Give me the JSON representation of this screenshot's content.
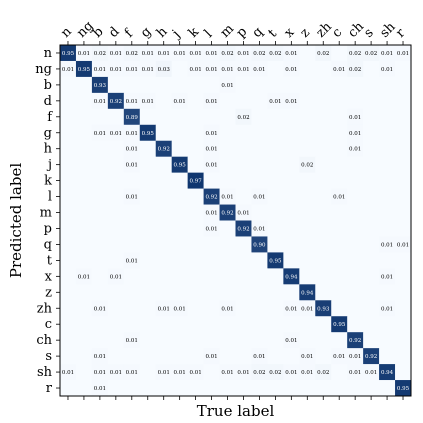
{
  "chart_data": {
    "type": "heatmap",
    "title": "",
    "xlabel": "True label",
    "ylabel": "Predicted label",
    "x_categories": [
      "n",
      "ng",
      "b",
      "d",
      "f",
      "g",
      "h",
      "j",
      "k",
      "l",
      "m",
      "p",
      "q",
      "t",
      "x",
      "z",
      "zh",
      "c",
      "ch",
      "s",
      "sh",
      "r"
    ],
    "y_categories": [
      "n",
      "ng",
      "b",
      "d",
      "f",
      "g",
      "h",
      "j",
      "k",
      "l",
      "m",
      "p",
      "q",
      "t",
      "x",
      "z",
      "zh",
      "c",
      "ch",
      "s",
      "sh",
      "r"
    ],
    "x_tick_position": "top",
    "x_tick_rotation_deg": -45,
    "colors": {
      "low": "#f7fbff",
      "high": "#08306b",
      "text_dark": "#000000",
      "text_light": "#ffffff",
      "border": "#000000"
    },
    "value_range": [
      0,
      1
    ],
    "values": [
      [
        0.95,
        0.01,
        0.02,
        0.01,
        0.02,
        0.01,
        0.01,
        0.01,
        0.01,
        0.01,
        0.02,
        0.01,
        0.02,
        0.02,
        0.01,
        null,
        0.02,
        null,
        0.02,
        0.02,
        0.01,
        0.01
      ],
      [
        0.01,
        0.95,
        0.01,
        0.01,
        0.01,
        0.01,
        0.03,
        null,
        0.01,
        0.01,
        0.01,
        0.01,
        0.01,
        null,
        0.01,
        null,
        null,
        0.01,
        0.02,
        null,
        0.01,
        null
      ],
      [
        null,
        null,
        0.93,
        null,
        null,
        null,
        null,
        null,
        null,
        null,
        0.01,
        null,
        null,
        null,
        null,
        null,
        null,
        null,
        null,
        null,
        null,
        null
      ],
      [
        null,
        null,
        0.01,
        0.92,
        0.01,
        0.01,
        null,
        0.01,
        null,
        0.01,
        null,
        null,
        null,
        0.01,
        0.01,
        null,
        null,
        null,
        null,
        null,
        null,
        null
      ],
      [
        null,
        null,
        null,
        null,
        0.89,
        null,
        null,
        null,
        null,
        null,
        null,
        0.02,
        null,
        null,
        null,
        null,
        null,
        null,
        0.01,
        null,
        null,
        null
      ],
      [
        null,
        null,
        0.01,
        0.01,
        0.01,
        0.95,
        null,
        null,
        null,
        0.01,
        null,
        null,
        null,
        null,
        null,
        null,
        null,
        null,
        0.01,
        null,
        null,
        null
      ],
      [
        null,
        null,
        null,
        null,
        0.01,
        null,
        0.92,
        null,
        null,
        0.01,
        null,
        null,
        null,
        null,
        null,
        null,
        null,
        null,
        0.01,
        null,
        null,
        null
      ],
      [
        null,
        null,
        null,
        null,
        0.01,
        null,
        null,
        0.95,
        null,
        0.01,
        null,
        null,
        null,
        null,
        null,
        0.02,
        null,
        null,
        null,
        null,
        null,
        null
      ],
      [
        null,
        null,
        null,
        null,
        null,
        null,
        null,
        null,
        0.97,
        null,
        null,
        null,
        null,
        null,
        null,
        null,
        null,
        null,
        null,
        null,
        null,
        null
      ],
      [
        null,
        null,
        null,
        null,
        0.01,
        null,
        null,
        null,
        null,
        0.92,
        0.01,
        null,
        0.01,
        null,
        null,
        null,
        null,
        0.01,
        null,
        null,
        null,
        null
      ],
      [
        null,
        null,
        null,
        null,
        null,
        null,
        null,
        null,
        null,
        0.01,
        0.92,
        0.01,
        null,
        null,
        null,
        null,
        null,
        null,
        null,
        null,
        null,
        null
      ],
      [
        null,
        null,
        null,
        null,
        null,
        null,
        null,
        null,
        null,
        0.01,
        null,
        0.92,
        0.01,
        null,
        null,
        null,
        null,
        null,
        null,
        null,
        null,
        null
      ],
      [
        null,
        null,
        null,
        null,
        null,
        null,
        null,
        null,
        null,
        null,
        null,
        null,
        0.9,
        null,
        null,
        null,
        null,
        null,
        null,
        null,
        0.01,
        0.01
      ],
      [
        null,
        null,
        null,
        null,
        0.01,
        null,
        null,
        null,
        null,
        null,
        null,
        null,
        null,
        0.95,
        null,
        null,
        null,
        null,
        null,
        null,
        null,
        null
      ],
      [
        null,
        0.01,
        null,
        0.01,
        null,
        null,
        null,
        null,
        null,
        null,
        null,
        null,
        null,
        null,
        0.94,
        null,
        null,
        null,
        null,
        null,
        0.01,
        null
      ],
      [
        null,
        null,
        null,
        null,
        null,
        null,
        null,
        null,
        null,
        null,
        null,
        null,
        null,
        null,
        null,
        0.94,
        null,
        null,
        null,
        null,
        null,
        null
      ],
      [
        null,
        null,
        0.01,
        null,
        null,
        null,
        0.01,
        0.01,
        null,
        null,
        0.01,
        null,
        null,
        null,
        0.01,
        0.01,
        0.93,
        null,
        null,
        null,
        0.01,
        null
      ],
      [
        null,
        null,
        null,
        null,
        null,
        null,
        null,
        null,
        null,
        null,
        null,
        null,
        null,
        null,
        null,
        null,
        null,
        0.95,
        null,
        null,
        null,
        null
      ],
      [
        null,
        null,
        null,
        null,
        0.01,
        null,
        null,
        null,
        null,
        null,
        null,
        null,
        null,
        null,
        0.01,
        null,
        null,
        null,
        0.92,
        null,
        null,
        null
      ],
      [
        null,
        null,
        0.01,
        null,
        null,
        null,
        null,
        null,
        null,
        0.01,
        null,
        null,
        0.01,
        null,
        null,
        0.01,
        null,
        0.01,
        0.01,
        0.92,
        null,
        null
      ],
      [
        0.01,
        null,
        0.01,
        0.01,
        0.01,
        null,
        0.01,
        0.01,
        0.01,
        null,
        0.01,
        0.01,
        0.02,
        0.02,
        0.01,
        0.01,
        0.02,
        null,
        0.01,
        0.01,
        0.94,
        null
      ],
      [
        null,
        null,
        0.01,
        null,
        null,
        null,
        null,
        null,
        null,
        null,
        null,
        null,
        null,
        null,
        null,
        null,
        null,
        null,
        null,
        null,
        null,
        0.95
      ]
    ]
  }
}
